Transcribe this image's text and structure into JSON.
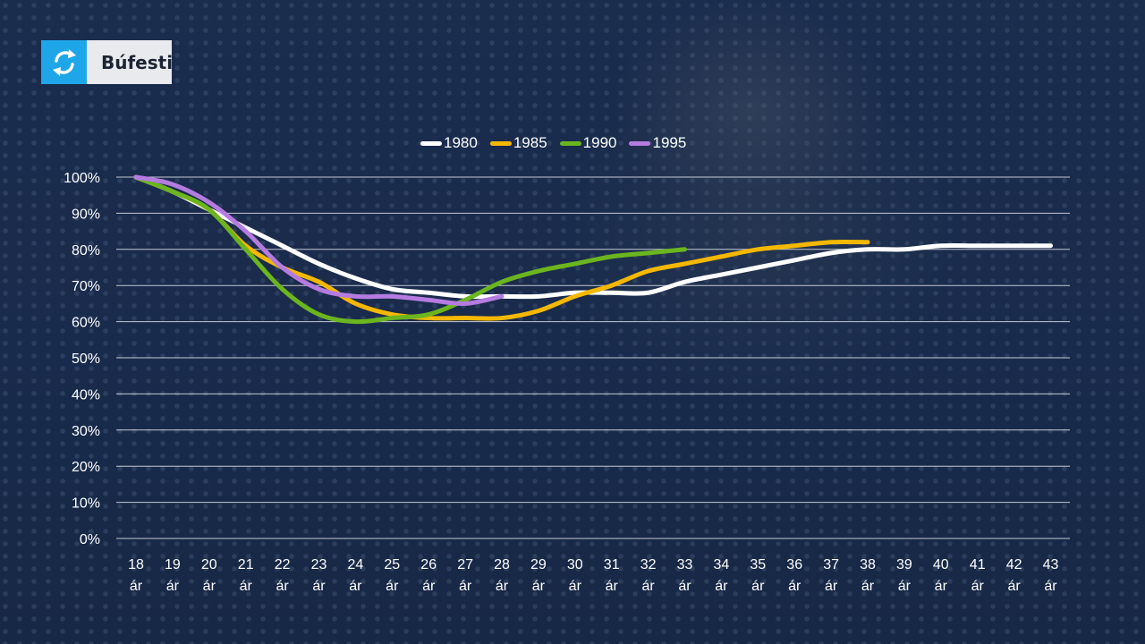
{
  "brand": {
    "name": "Búfesti",
    "icon": "refresh-arrows-icon"
  },
  "colors": {
    "brand_blue": "#1fa6e8",
    "grid": "#ffffff",
    "text": "#ffffff"
  },
  "chart_data": {
    "type": "line",
    "title": "",
    "xlabel": "",
    "ylabel": "",
    "x_categories": [
      "18 ár",
      "19 ár",
      "20 ár",
      "21 ár",
      "22 ár",
      "23 ár",
      "24 ár",
      "25 ár",
      "26 ár",
      "27 ár",
      "28 ár",
      "29 ár",
      "30 ár",
      "31 ár",
      "32 ár",
      "33 ár",
      "34 ár",
      "35 ár",
      "36 ár",
      "37 ár",
      "38 ár",
      "39 ár",
      "40 ár",
      "41 ár",
      "42 ár",
      "43 ár"
    ],
    "y_ticks": [
      "100%",
      "90%",
      "80%",
      "70%",
      "60%",
      "50%",
      "40%",
      "30%",
      "20%",
      "10%",
      "0%"
    ],
    "ylim": [
      0,
      100
    ],
    "grid": true,
    "legend_position": "top",
    "series": [
      {
        "name": "1980",
        "color": "#ffffff",
        "values": [
          100,
          96,
          91,
          86,
          81,
          76,
          72,
          69,
          68,
          67,
          67,
          67,
          68,
          68,
          68,
          71,
          73,
          75,
          77,
          79,
          80,
          80,
          81,
          81,
          81,
          81
        ]
      },
      {
        "name": "1985",
        "color": "#f5b800",
        "values": [
          100,
          96,
          91,
          81,
          75,
          71,
          65,
          62,
          61,
          61,
          61,
          63,
          67,
          70,
          74,
          76,
          78,
          80,
          81,
          82,
          82
        ]
      },
      {
        "name": "1990",
        "color": "#6bb51e",
        "values": [
          100,
          96,
          91,
          80,
          69,
          62,
          60,
          61,
          62,
          66,
          71,
          74,
          76,
          78,
          79,
          80
        ]
      },
      {
        "name": "1995",
        "color": "#b57be0",
        "values": [
          100,
          98,
          93,
          85,
          75,
          69,
          67,
          67,
          66,
          65,
          67
        ]
      }
    ]
  }
}
